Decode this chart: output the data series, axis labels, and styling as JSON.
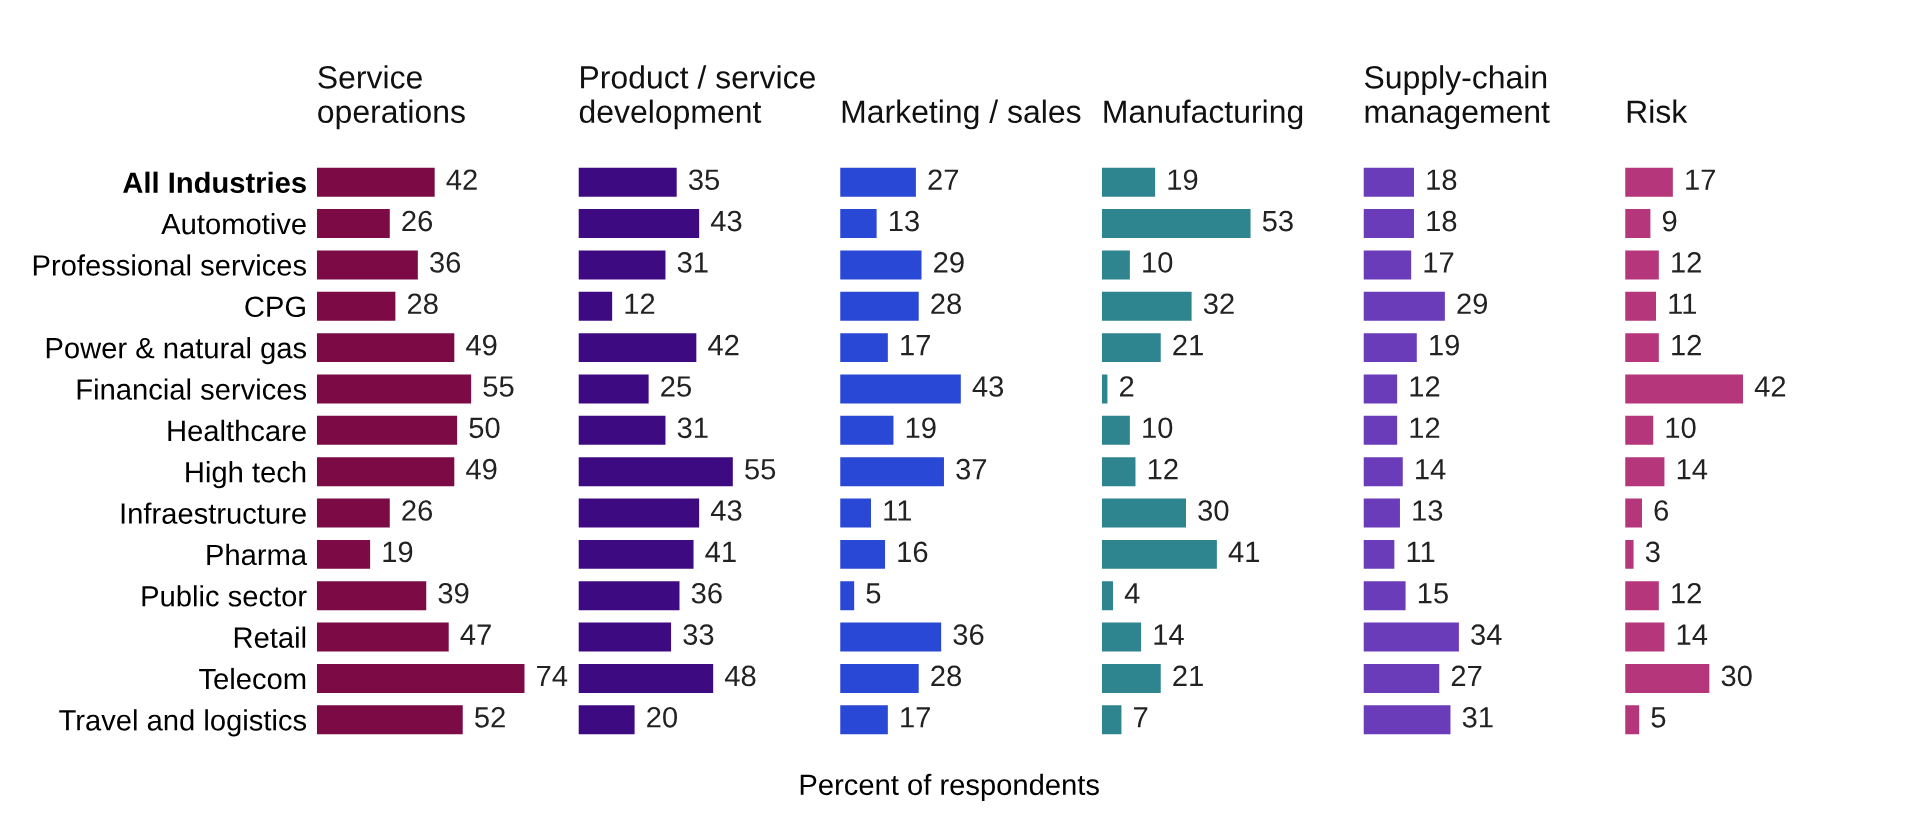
{
  "chart_data": [
    {
      "type": "bar",
      "orientation": "horizontal",
      "title": "Service\noperations",
      "categories": [
        "All Industries",
        "Automotive",
        "Professional services",
        "CPG",
        "Power & natural gas",
        "Financial services",
        "Healthcare",
        "High tech",
        "Infraestructure",
        "Pharma",
        "Public sector",
        "Retail",
        "Telecom",
        "Travel and logistics"
      ],
      "values": [
        42,
        26,
        36,
        28,
        49,
        55,
        50,
        49,
        26,
        19,
        39,
        47,
        74,
        52
      ],
      "color": "#7b0a45",
      "data_labels": true,
      "tick_labels": "y"
    },
    {
      "type": "bar",
      "orientation": "horizontal",
      "title": "Product / service\ndevelopment",
      "values": [
        35,
        43,
        31,
        12,
        42,
        25,
        31,
        55,
        43,
        41,
        36,
        33,
        48,
        20
      ],
      "color": "#3e0a82",
      "data_labels": true,
      "tick_labels": false
    },
    {
      "type": "bar",
      "orientation": "horizontal",
      "title": "Marketing / sales",
      "xlabel": "Percent of respondents",
      "values": [
        27,
        13,
        29,
        28,
        17,
        43,
        19,
        37,
        11,
        16,
        5,
        36,
        28,
        17
      ],
      "color": "#2a48d6",
      "data_labels": true,
      "tick_labels": false
    },
    {
      "type": "bar",
      "orientation": "horizontal",
      "title": "Manufacturing",
      "values": [
        19,
        53,
        10,
        32,
        21,
        2,
        10,
        12,
        30,
        41,
        4,
        14,
        21,
        7
      ],
      "color": "#2e8590",
      "data_labels": true,
      "tick_labels": false
    },
    {
      "type": "bar",
      "orientation": "horizontal",
      "title": "Supply-chain\nmanagement",
      "values": [
        18,
        18,
        17,
        29,
        19,
        12,
        12,
        14,
        13,
        11,
        15,
        34,
        27,
        31
      ],
      "color": "#6b3cba",
      "data_labels": true,
      "tick_labels": false
    },
    {
      "type": "bar",
      "orientation": "horizontal",
      "title": "Risk",
      "values": [
        17,
        9,
        12,
        11,
        12,
        42,
        10,
        14,
        6,
        3,
        12,
        14,
        30,
        5
      ],
      "color": "#b5367a",
      "data_labels": true,
      "tick_labels": false
    }
  ]
}
